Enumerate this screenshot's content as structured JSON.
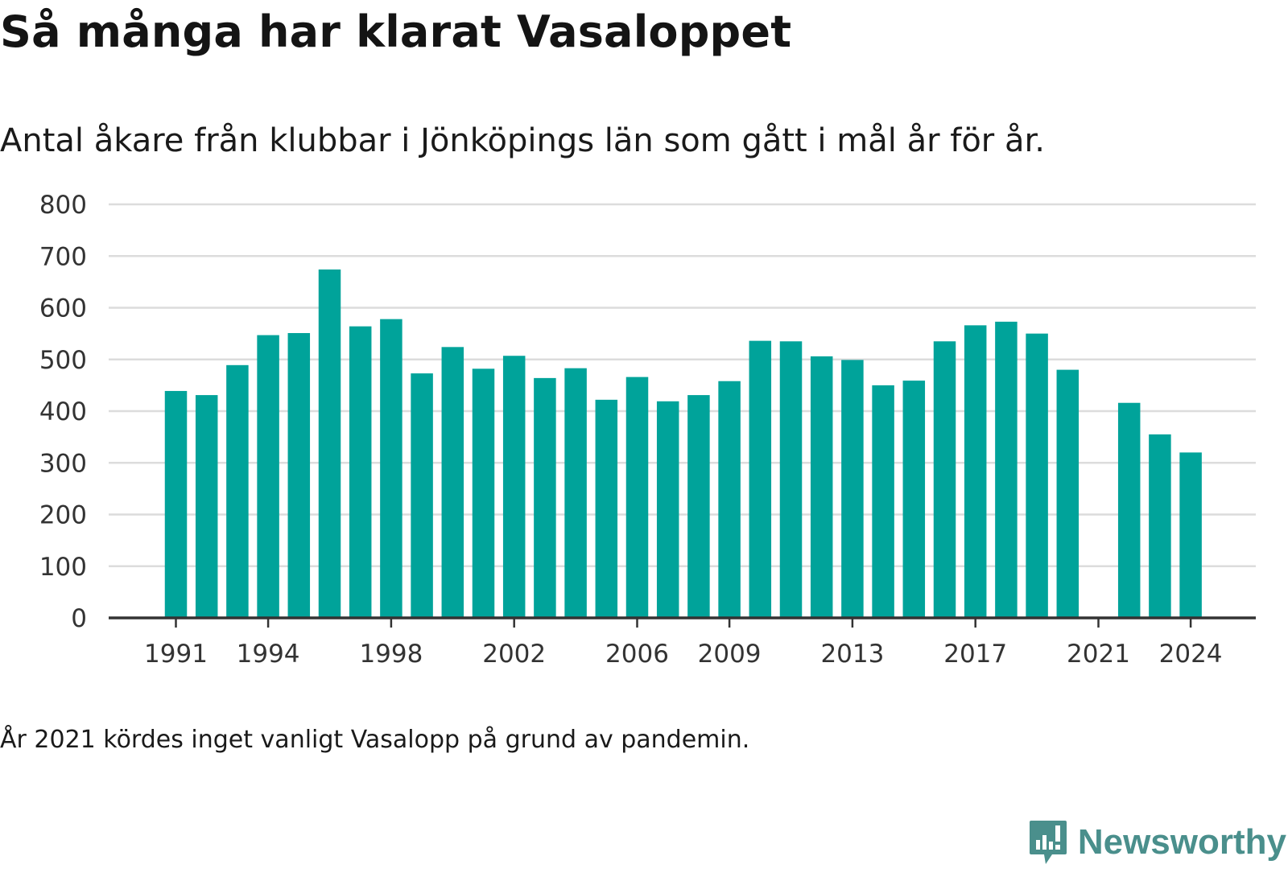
{
  "title": "Så många har klarat Vasaloppet",
  "subtitle": "Antal åkare från klubbar i Jönköpings län som gått i mål år för år.",
  "note": "År 2021 kördes inget vanligt Vasalopp på grund av pandemin.",
  "brand": {
    "name": "Newsworthy",
    "icon": "newsworthy-logo-icon",
    "color": "#4a8f8c"
  },
  "colors": {
    "bar": "#00a39a",
    "grid": "#dcdcdc",
    "axis": "#333333"
  },
  "chart_data": {
    "type": "bar",
    "x": [
      1991,
      1992,
      1993,
      1994,
      1995,
      1996,
      1997,
      1998,
      1999,
      2000,
      2001,
      2002,
      2003,
      2004,
      2005,
      2006,
      2007,
      2008,
      2009,
      2010,
      2011,
      2012,
      2013,
      2014,
      2015,
      2016,
      2017,
      2018,
      2019,
      2020,
      2021,
      2022,
      2023,
      2024
    ],
    "values": [
      439,
      431,
      489,
      547,
      551,
      674,
      564,
      578,
      473,
      524,
      482,
      507,
      464,
      483,
      422,
      466,
      419,
      431,
      458,
      536,
      535,
      506,
      499,
      450,
      459,
      535,
      566,
      573,
      550,
      480,
      null,
      416,
      355,
      320
    ],
    "xticks": [
      "1991",
      "1994",
      "1998",
      "2002",
      "2006",
      "2009",
      "2013",
      "2017",
      "2021",
      "2024"
    ],
    "yticks": [
      "0",
      "100",
      "200",
      "300",
      "400",
      "500",
      "600",
      "700",
      "800"
    ],
    "ylim": [
      0,
      800
    ],
    "grid": true,
    "legend": "none"
  }
}
